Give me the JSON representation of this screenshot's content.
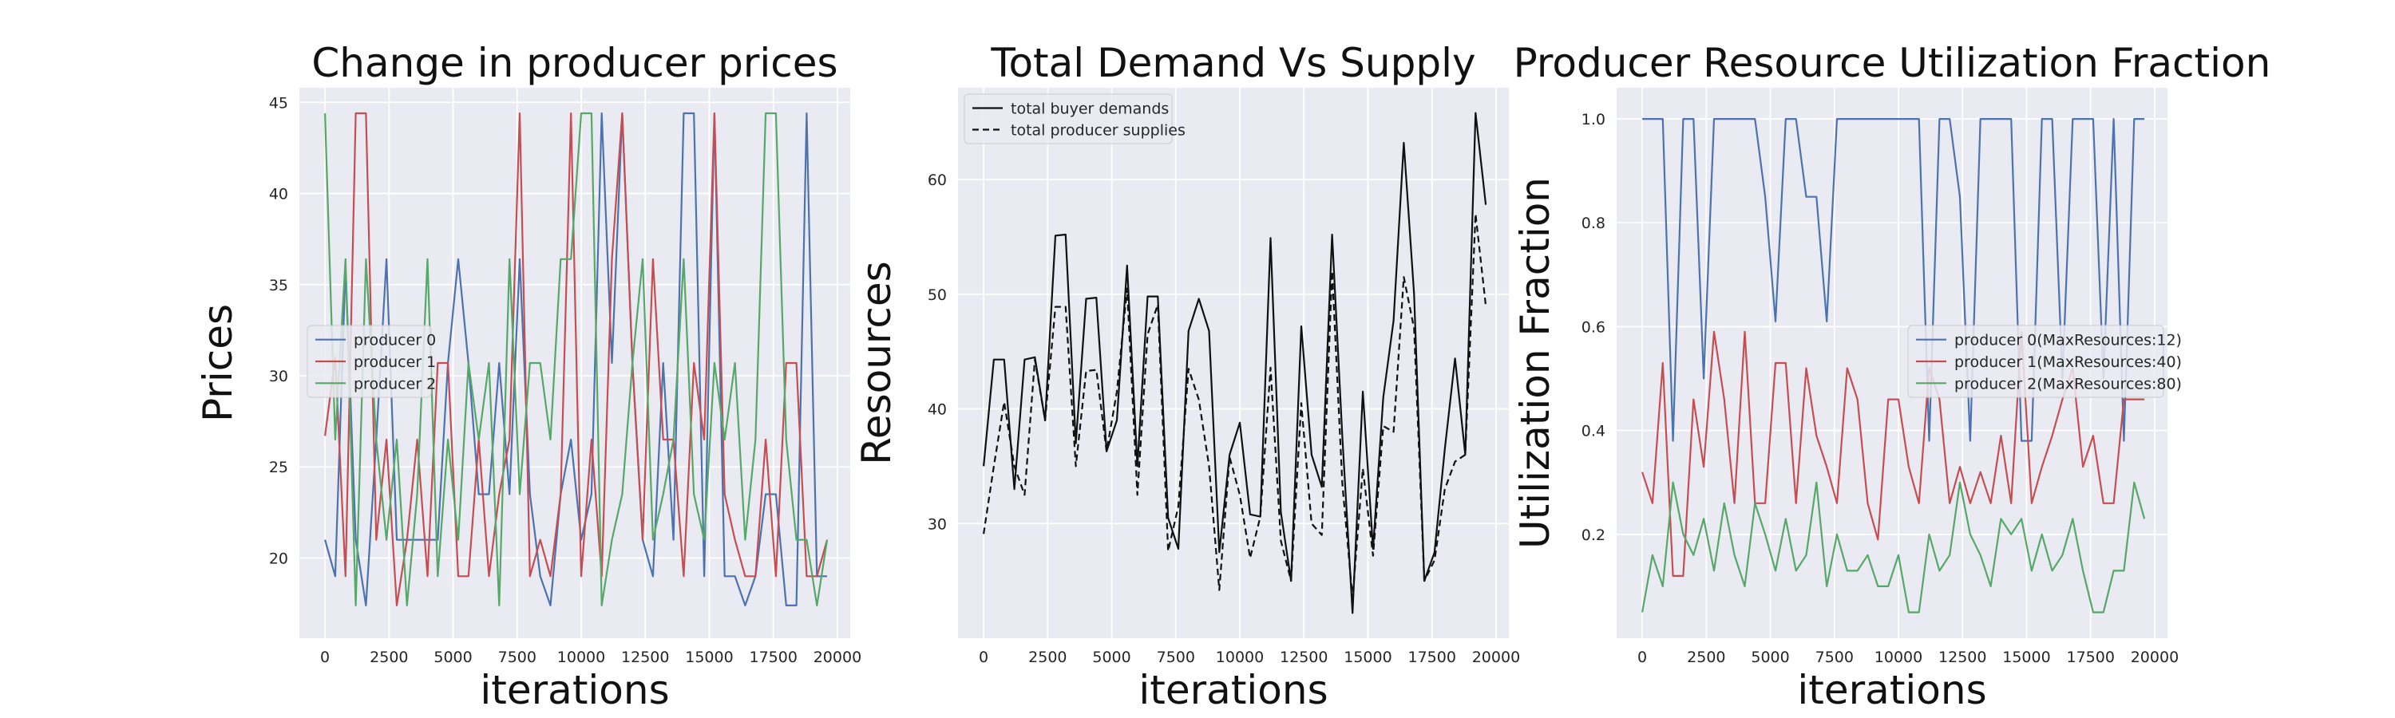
{
  "chart_data": [
    {
      "type": "line",
      "title": "Change in producer prices",
      "xlabel": "iterations",
      "ylabel": "Prices",
      "xlim": [
        -1000,
        20500
      ],
      "ylim": [
        15.6,
        45.8
      ],
      "xticks": [
        0,
        2500,
        5000,
        7500,
        10000,
        12500,
        15000,
        17500,
        20000
      ],
      "xtick_labels": [
        "0",
        "2500",
        "5000",
        "7500",
        "10000",
        "12500",
        "15000",
        "17500",
        "20000"
      ],
      "yticks": [
        20,
        25,
        30,
        35,
        40,
        45
      ],
      "ytick_labels": [
        "20",
        "25",
        "30",
        "35",
        "40",
        "45"
      ],
      "grid": true,
      "legend_position": "center-left",
      "x": [
        0,
        400,
        800,
        1200,
        1600,
        2000,
        2400,
        2800,
        3200,
        3600,
        4000,
        4400,
        4800,
        5200,
        5600,
        6000,
        6400,
        6800,
        7200,
        7600,
        8000,
        8400,
        8800,
        9200,
        9600,
        10000,
        10400,
        10800,
        11200,
        11600,
        12000,
        12400,
        12800,
        13200,
        13600,
        14000,
        14400,
        14800,
        15200,
        15600,
        16000,
        16400,
        16800,
        17200,
        17600,
        18000,
        18400,
        18800,
        19200,
        19600
      ],
      "series": [
        {
          "name": "producer 0",
          "color": "#4c72b0",
          "values": [
            21,
            19,
            36,
            21,
            17.4,
            26.5,
            36.4,
            21,
            21,
            21,
            21,
            21,
            30.7,
            36.4,
            30.7,
            23.5,
            23.5,
            30.7,
            23.5,
            36.4,
            23.5,
            19,
            17.4,
            23.5,
            26.5,
            21,
            23.5,
            44.4,
            30.7,
            44.4,
            30.7,
            21,
            19,
            30.7,
            21,
            44.4,
            44.4,
            19,
            44.4,
            19,
            19,
            17.4,
            19,
            23.5,
            23.5,
            17.4,
            17.4,
            44.4,
            19,
            19
          ]
        },
        {
          "name": "producer 1",
          "color": "#c44e52",
          "values": [
            26.7,
            31,
            19,
            44.4,
            44.4,
            21,
            26.5,
            17.4,
            21,
            26.5,
            19,
            30.7,
            30.7,
            19,
            19,
            26.5,
            19,
            23.5,
            26.5,
            44.4,
            19,
            21,
            19,
            23.5,
            44.4,
            19,
            26.5,
            19,
            36.4,
            44.4,
            30.7,
            21,
            36.4,
            26.5,
            26.5,
            19,
            30.7,
            26.5,
            44.4,
            23.5,
            21,
            19,
            19,
            26.5,
            19,
            30.7,
            30.7,
            19,
            19,
            21
          ]
        },
        {
          "name": "producer 2",
          "color": "#55a868",
          "values": [
            44.4,
            26.5,
            36.4,
            17.4,
            36.4,
            26.5,
            21,
            26.5,
            17.4,
            23.5,
            36.4,
            19,
            26.5,
            21,
            30.7,
            26.5,
            30.7,
            17.4,
            36.4,
            23.5,
            30.7,
            30.7,
            26.5,
            36.4,
            36.4,
            44.4,
            44.4,
            17.4,
            21,
            23.5,
            30.7,
            36.4,
            21,
            23.5,
            26.5,
            36.4,
            23.5,
            21,
            30.7,
            26.5,
            30.7,
            21,
            26.5,
            44.4,
            44.4,
            26.5,
            21,
            21,
            17.4,
            21
          ]
        }
      ]
    },
    {
      "type": "line",
      "title": "Total Demand Vs Supply",
      "xlabel": "iterations",
      "ylabel": "Resources",
      "xlim": [
        -1000,
        20500
      ],
      "ylim": [
        20,
        68
      ],
      "xticks": [
        0,
        2500,
        5000,
        7500,
        10000,
        12500,
        15000,
        17500,
        20000
      ],
      "xtick_labels": [
        "0",
        "2500",
        "5000",
        "7500",
        "10000",
        "12500",
        "15000",
        "17500",
        "20000"
      ],
      "yticks": [
        30,
        40,
        50,
        60
      ],
      "ytick_labels": [
        "30",
        "40",
        "50",
        "60"
      ],
      "grid": true,
      "legend_position": "top-left",
      "x": [
        0,
        400,
        800,
        1200,
        1600,
        2000,
        2400,
        2800,
        3200,
        3600,
        4000,
        4400,
        4800,
        5200,
        5600,
        6000,
        6400,
        6800,
        7200,
        7600,
        8000,
        8400,
        8800,
        9200,
        9600,
        10000,
        10400,
        10800,
        11200,
        11600,
        12000,
        12400,
        12800,
        13200,
        13600,
        14000,
        14400,
        14800,
        15200,
        15600,
        16000,
        16400,
        16800,
        17200,
        17600,
        18000,
        18400,
        18800,
        19200,
        19600
      ],
      "series": [
        {
          "name": "total buyer demands",
          "color": "#111111",
          "dash": "solid",
          "values": [
            35,
            44.3,
            44.3,
            33,
            44.3,
            44.5,
            39,
            55.1,
            55.2,
            37,
            49.6,
            49.7,
            36.3,
            39,
            52.5,
            35,
            49.8,
            49.8,
            30.5,
            27.8,
            46.8,
            49.6,
            46.8,
            27.5,
            36,
            38.8,
            30.8,
            30.6,
            54.9,
            31,
            25,
            47.2,
            36,
            33.2,
            55.2,
            37.6,
            22.2,
            41.5,
            27.8,
            41,
            47.7,
            63.2,
            50,
            25,
            27.5,
            36.5,
            44.4,
            36,
            65.8,
            57.8
          ]
        },
        {
          "name": "total producer supplies",
          "color": "#111111",
          "dash": "dashed",
          "values": [
            29.1,
            35,
            40.6,
            35,
            32.5,
            44.3,
            39,
            48.9,
            48.9,
            35,
            43.3,
            43.4,
            36.3,
            41.5,
            50.5,
            32.5,
            46.5,
            49.1,
            27.6,
            31.5,
            43.5,
            40.8,
            35,
            24.2,
            35.8,
            32.5,
            27,
            30.6,
            43.6,
            28.5,
            25,
            40.5,
            30,
            29,
            52,
            33.5,
            23.5,
            34.8,
            27.2,
            38.5,
            38,
            51.5,
            47,
            25,
            26.8,
            33,
            35.4,
            36,
            57,
            49
          ]
        }
      ]
    },
    {
      "type": "line",
      "title": "Producer Resource Utilization Fraction",
      "xlabel": "iterations",
      "ylabel": "Utilization Fraction",
      "xlim": [
        -1000,
        20500
      ],
      "ylim": [
        0.0,
        1.06
      ],
      "xticks": [
        0,
        2500,
        5000,
        7500,
        10000,
        12500,
        15000,
        17500,
        20000
      ],
      "xtick_labels": [
        "0",
        "2500",
        "5000",
        "7500",
        "10000",
        "12500",
        "15000",
        "17500",
        "20000"
      ],
      "yticks": [
        0.2,
        0.4,
        0.6,
        0.8,
        1.0
      ],
      "ytick_labels": [
        "0.2",
        "0.4",
        "0.6",
        "0.8",
        "1.0"
      ],
      "grid": true,
      "legend_position": "center-right",
      "x": [
        0,
        400,
        800,
        1200,
        1600,
        2000,
        2400,
        2800,
        3200,
        3600,
        4000,
        4400,
        4800,
        5200,
        5600,
        6000,
        6400,
        6800,
        7200,
        7600,
        8000,
        8400,
        8800,
        9200,
        9600,
        10000,
        10400,
        10800,
        11200,
        11600,
        12000,
        12400,
        12800,
        13200,
        13600,
        14000,
        14400,
        14800,
        15200,
        15600,
        16000,
        16400,
        16800,
        17200,
        17600,
        18000,
        18400,
        18800,
        19200,
        19600
      ],
      "series": [
        {
          "name": "producer 0(MaxResources:12)",
          "color": "#4c72b0",
          "values": [
            1.0,
            1.0,
            1.0,
            0.38,
            1.0,
            1.0,
            0.5,
            1.0,
            1.0,
            1.0,
            1.0,
            1.0,
            0.85,
            0.61,
            1.0,
            1.0,
            0.85,
            0.85,
            0.61,
            1.0,
            1.0,
            1.0,
            1.0,
            1.0,
            1.0,
            1.0,
            1.0,
            1.0,
            0.38,
            1.0,
            1.0,
            0.85,
            0.38,
            1.0,
            1.0,
            1.0,
            1.0,
            0.38,
            0.38,
            1.0,
            1.0,
            0.5,
            1.0,
            1.0,
            1.0,
            0.5,
            1.0,
            0.38,
            1.0,
            1.0
          ]
        },
        {
          "name": "producer 1(MaxResources:40)",
          "color": "#c44e52",
          "values": [
            0.32,
            0.26,
            0.53,
            0.12,
            0.12,
            0.46,
            0.33,
            0.59,
            0.46,
            0.26,
            0.59,
            0.26,
            0.26,
            0.53,
            0.53,
            0.26,
            0.52,
            0.39,
            0.33,
            0.26,
            0.52,
            0.46,
            0.26,
            0.19,
            0.46,
            0.46,
            0.33,
            0.26,
            0.52,
            0.46,
            0.26,
            0.33,
            0.26,
            0.32,
            0.26,
            0.39,
            0.26,
            0.59,
            0.26,
            0.33,
            0.39,
            0.46,
            0.52,
            0.33,
            0.39,
            0.26,
            0.26,
            0.46,
            0.46,
            0.46
          ]
        },
        {
          "name": "producer 2(MaxResources:80)",
          "color": "#55a868",
          "values": [
            0.05,
            0.16,
            0.1,
            0.3,
            0.2,
            0.16,
            0.23,
            0.13,
            0.26,
            0.16,
            0.1,
            0.26,
            0.2,
            0.13,
            0.23,
            0.13,
            0.16,
            0.3,
            0.1,
            0.2,
            0.13,
            0.13,
            0.16,
            0.1,
            0.1,
            0.16,
            0.05,
            0.05,
            0.2,
            0.13,
            0.16,
            0.3,
            0.2,
            0.16,
            0.1,
            0.23,
            0.2,
            0.23,
            0.13,
            0.2,
            0.13,
            0.16,
            0.23,
            0.13,
            0.05,
            0.05,
            0.13,
            0.13,
            0.3,
            0.23
          ]
        }
      ]
    }
  ]
}
